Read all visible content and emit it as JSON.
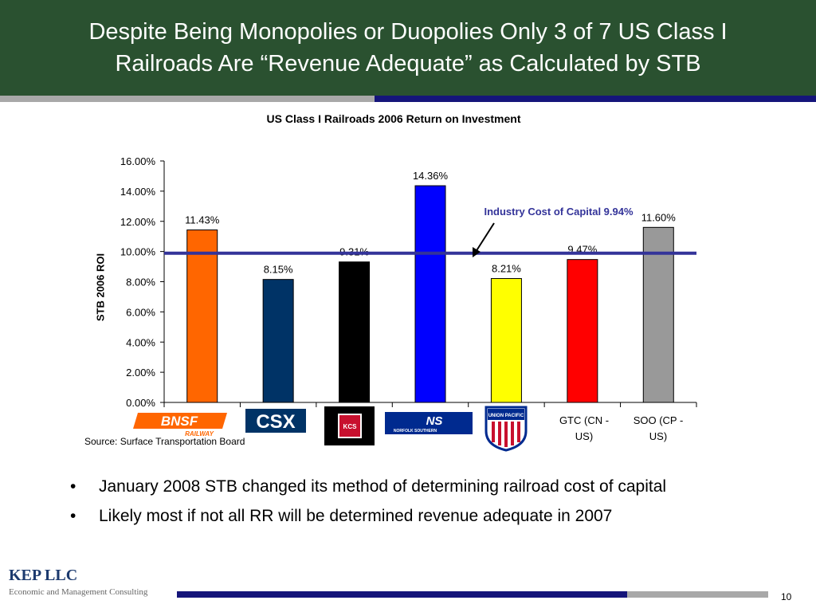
{
  "slide": {
    "title_line1": "Despite Being Monopolies or Duopolies Only 3 of 7 US Class I",
    "title_line2": "Railroads Are “Revenue Adequate” as Calculated by STB",
    "source": "Source: Surface Transportation Board",
    "bullets": [
      "January 2008 STB changed its method of determining railroad cost of capital",
      "Likely most if not all RR will be determined revenue adequate in 2007"
    ],
    "brand": "KEP LLC",
    "tagline": "Economic and Management Consulting",
    "page_number": "10"
  },
  "chart_data": {
    "type": "bar",
    "title": "US Class I Railroads 2006 Return on Investment",
    "ylabel": "STB 2006 ROI",
    "ylim": [
      0,
      16
    ],
    "yticks": [
      "0.00%",
      "2.00%",
      "4.00%",
      "6.00%",
      "8.00%",
      "10.00%",
      "12.00%",
      "14.00%",
      "16.00%"
    ],
    "categories": [
      "BNSF Railway",
      "CSX",
      "Kansas City Southern",
      "Norfolk Southern",
      "Union Pacific",
      "GTC (CN - US)",
      "SOO (CP - US)"
    ],
    "category_labels_text": [
      "",
      "",
      "",
      "",
      "",
      "GTC (CN -\nUS)",
      "SOO (CP -\nUS)"
    ],
    "values": [
      11.43,
      8.15,
      9.31,
      14.36,
      8.21,
      9.47,
      11.6
    ],
    "value_labels": [
      "11.43%",
      "8.15%",
      "9.31%",
      "14.36%",
      "8.21%",
      "9.47%",
      "11.60%"
    ],
    "colors": [
      "#ff6600",
      "#003366",
      "#000000",
      "#0000ff",
      "#ffff00",
      "#ff0000",
      "#999999"
    ],
    "reference_line": {
      "value": 9.94,
      "label": "Industry Cost of Capital 9.94%",
      "color": "#333399"
    },
    "logos": {
      "bnsf": {
        "text": "BNSF",
        "subtext": "RAILWAY",
        "color": "#ff6600"
      },
      "csx": {
        "text": "CSX",
        "color": "#003366"
      },
      "kcs": {
        "text": "KCS",
        "color": "#c8102e"
      },
      "ns": {
        "text": "NS",
        "subtext": "NORFOLK SOUTHERN",
        "color": "#002a8f"
      },
      "up": {
        "text": "UNION PACIFIC",
        "color": "#002a8f",
        "accent": "#c8102e"
      }
    },
    "grid": false,
    "legend": "none"
  }
}
